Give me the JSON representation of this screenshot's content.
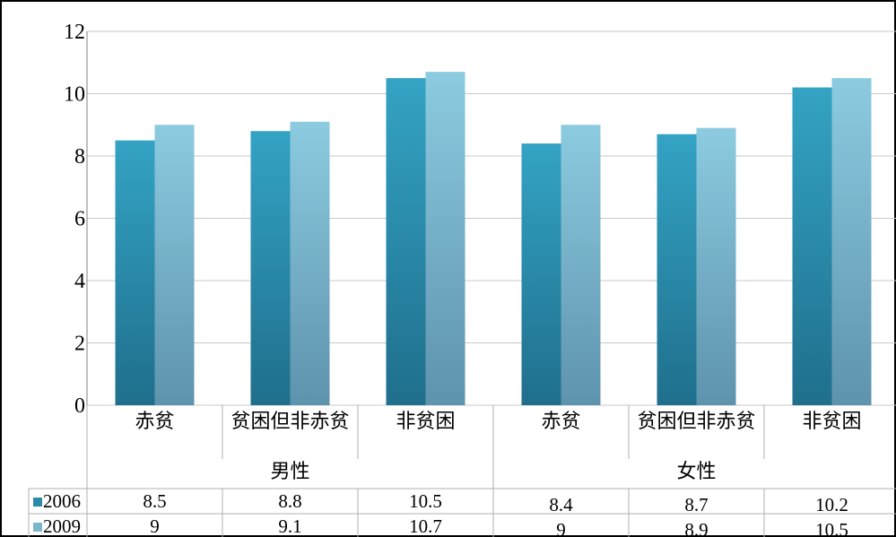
{
  "chart_data": {
    "type": "bar",
    "title": "",
    "xlabel": "",
    "ylabel": "",
    "ylim": [
      0,
      12
    ],
    "yticks": [
      0,
      2,
      4,
      6,
      8,
      10,
      12
    ],
    "grid": true,
    "categories": [
      "赤贫",
      "贫困但非赤贫",
      "非贫困",
      "赤贫",
      "贫困但非赤贫",
      "非贫困"
    ],
    "groups": [
      {
        "label": "男性",
        "span": [
          0,
          2
        ]
      },
      {
        "label": "女性",
        "span": [
          3,
          5
        ]
      }
    ],
    "series": [
      {
        "name": "2006",
        "values": [
          8.5,
          8.8,
          10.5,
          8.4,
          8.7,
          10.2
        ],
        "color": "#2a8aa8"
      },
      {
        "name": "2009",
        "values": [
          9,
          9.1,
          10.7,
          9,
          8.9,
          10.5
        ],
        "color": "#7cb6cb"
      }
    ],
    "table_values": [
      [
        "8.5",
        "8.8",
        "10.5",
        "8.4",
        "8.7",
        "10.2"
      ],
      [
        "9",
        "9.1",
        "10.7",
        "9",
        "8.9",
        "10.5"
      ]
    ],
    "legend_placement": "data-table"
  }
}
